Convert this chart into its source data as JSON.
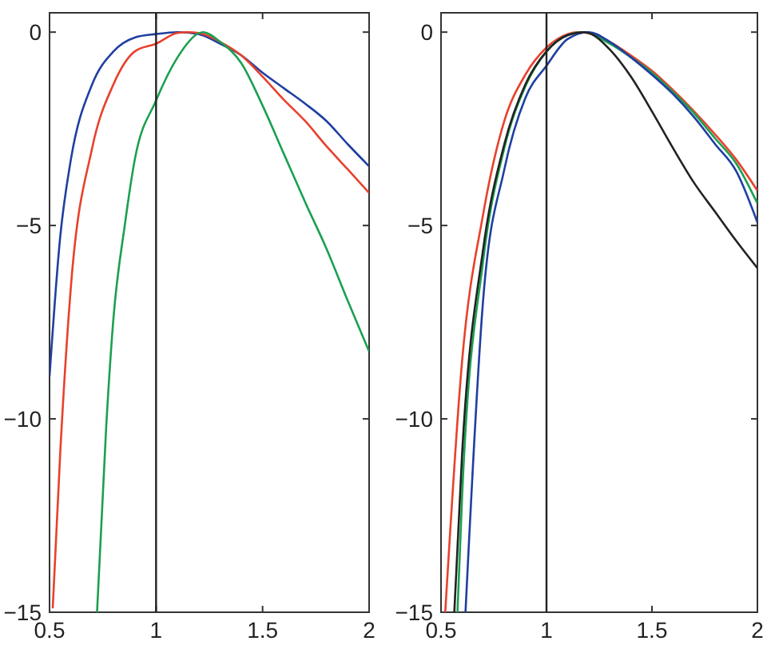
{
  "chart_data": [
    {
      "type": "line",
      "xlim": [
        0.5,
        2
      ],
      "ylim": [
        -15,
        0.5
      ],
      "xticks": [
        0.5,
        1,
        1.5,
        2
      ],
      "yticks": [
        0,
        {
          "value": -5,
          "label": "−5"
        },
        {
          "value": -10,
          "label": "−10"
        },
        {
          "value": -15,
          "label": "−15"
        }
      ],
      "grid": false,
      "ref_lines": [
        {
          "axis": "x",
          "value": 1,
          "color": "#222222"
        }
      ],
      "series": [
        {
          "color": "#1f3fa0",
          "x": [
            0.5,
            0.55,
            0.6,
            0.7,
            0.8,
            0.9,
            1.0,
            1.1,
            1.2,
            1.3,
            1.4,
            1.5,
            1.6,
            1.7,
            1.8,
            1.9,
            2.0
          ],
          "values": [
            -8.9,
            -5.3,
            -3.3,
            -1.35,
            -0.5,
            -0.14,
            -0.05,
            0,
            -0.05,
            -0.3,
            -0.6,
            -1.05,
            -1.45,
            -1.85,
            -2.3,
            -2.9,
            -3.47
          ]
        },
        {
          "color": "#e8412c",
          "x": [
            0.515,
            0.55,
            0.6,
            0.7,
            0.8,
            0.9,
            1.0,
            1.1,
            1.15,
            1.2,
            1.3,
            1.4,
            1.5,
            1.6,
            1.7,
            1.8,
            1.9,
            2.0
          ],
          "values": [
            -14.9,
            -10.9,
            -6.6,
            -3.0,
            -1.35,
            -0.5,
            -0.3,
            -0.02,
            0,
            -0.02,
            -0.25,
            -0.6,
            -1.15,
            -1.75,
            -2.3,
            -2.95,
            -3.55,
            -4.16
          ]
        },
        {
          "color": "#1aa050",
          "x": [
            0.723,
            0.766,
            0.8,
            0.853,
            0.9,
            1.0,
            1.1,
            1.2,
            1.22,
            1.3,
            1.4,
            1.5,
            1.6,
            1.7,
            1.8,
            1.9,
            2.0
          ],
          "values": [
            -15,
            -10.2,
            -7.4,
            -5.0,
            -3.3,
            -1.77,
            -0.66,
            -0.03,
            0,
            -0.25,
            -0.8,
            -1.9,
            -3.15,
            -4.4,
            -5.6,
            -6.95,
            -8.26
          ]
        }
      ]
    },
    {
      "type": "line",
      "xlim": [
        0.5,
        2
      ],
      "ylim": [
        -15,
        0.5
      ],
      "xticks": [
        0.5,
        1,
        1.5,
        2
      ],
      "yticks": [
        0,
        {
          "value": -5,
          "label": "−5"
        },
        {
          "value": -10,
          "label": "−10"
        },
        {
          "value": -15,
          "label": "−15"
        }
      ],
      "grid": false,
      "ref_lines": [
        {
          "axis": "x",
          "value": 1,
          "color": "#222222"
        }
      ],
      "series": [
        {
          "color": "#e8412c",
          "x": [
            0.52,
            0.6,
            0.7,
            0.8,
            0.9,
            1.0,
            1.1,
            1.15,
            1.2,
            1.3,
            1.4,
            1.5,
            1.6,
            1.7,
            1.8,
            1.9,
            2.0
          ],
          "values": [
            -15,
            -8.5,
            -4.7,
            -2.3,
            -1.1,
            -0.4,
            -0.05,
            0,
            -0.03,
            -0.25,
            -0.6,
            -1.0,
            -1.5,
            -2.05,
            -2.65,
            -3.3,
            -4.1
          ]
        },
        {
          "color": "#1aa050",
          "x": [
            0.578,
            0.6,
            0.7,
            0.8,
            0.9,
            1.0,
            1.1,
            1.17,
            1.3,
            1.4,
            1.5,
            1.6,
            1.7,
            1.8,
            1.9,
            2.0
          ],
          "values": [
            -15,
            -12.0,
            -5.9,
            -3.0,
            -1.4,
            -0.5,
            -0.08,
            0,
            -0.3,
            -0.65,
            -1.05,
            -1.55,
            -2.1,
            -2.75,
            -3.4,
            -4.43
          ]
        },
        {
          "color": "#1f3fa0",
          "x": [
            0.616,
            0.7,
            0.8,
            0.9,
            1.0,
            1.1,
            1.2,
            1.3,
            1.4,
            1.5,
            1.6,
            1.7,
            1.8,
            1.9,
            2.0
          ],
          "values": [
            -15,
            -6.9,
            -3.55,
            -1.7,
            -0.87,
            -0.18,
            0,
            -0.25,
            -0.65,
            -1.1,
            -1.6,
            -2.2,
            -2.9,
            -3.6,
            -4.92
          ]
        },
        {
          "color": "#222222",
          "x": [
            0.563,
            0.6,
            0.7,
            0.8,
            0.9,
            1.0,
            1.1,
            1.18,
            1.2,
            1.3,
            1.4,
            1.5,
            1.6,
            1.7,
            1.8,
            1.9,
            2.0
          ],
          "values": [
            -15,
            -10.9,
            -5.6,
            -2.9,
            -1.35,
            -0.5,
            -0.08,
            0,
            -0.02,
            -0.45,
            -1.15,
            -2.05,
            -3.0,
            -3.9,
            -4.65,
            -5.4,
            -6.1
          ]
        }
      ]
    }
  ]
}
